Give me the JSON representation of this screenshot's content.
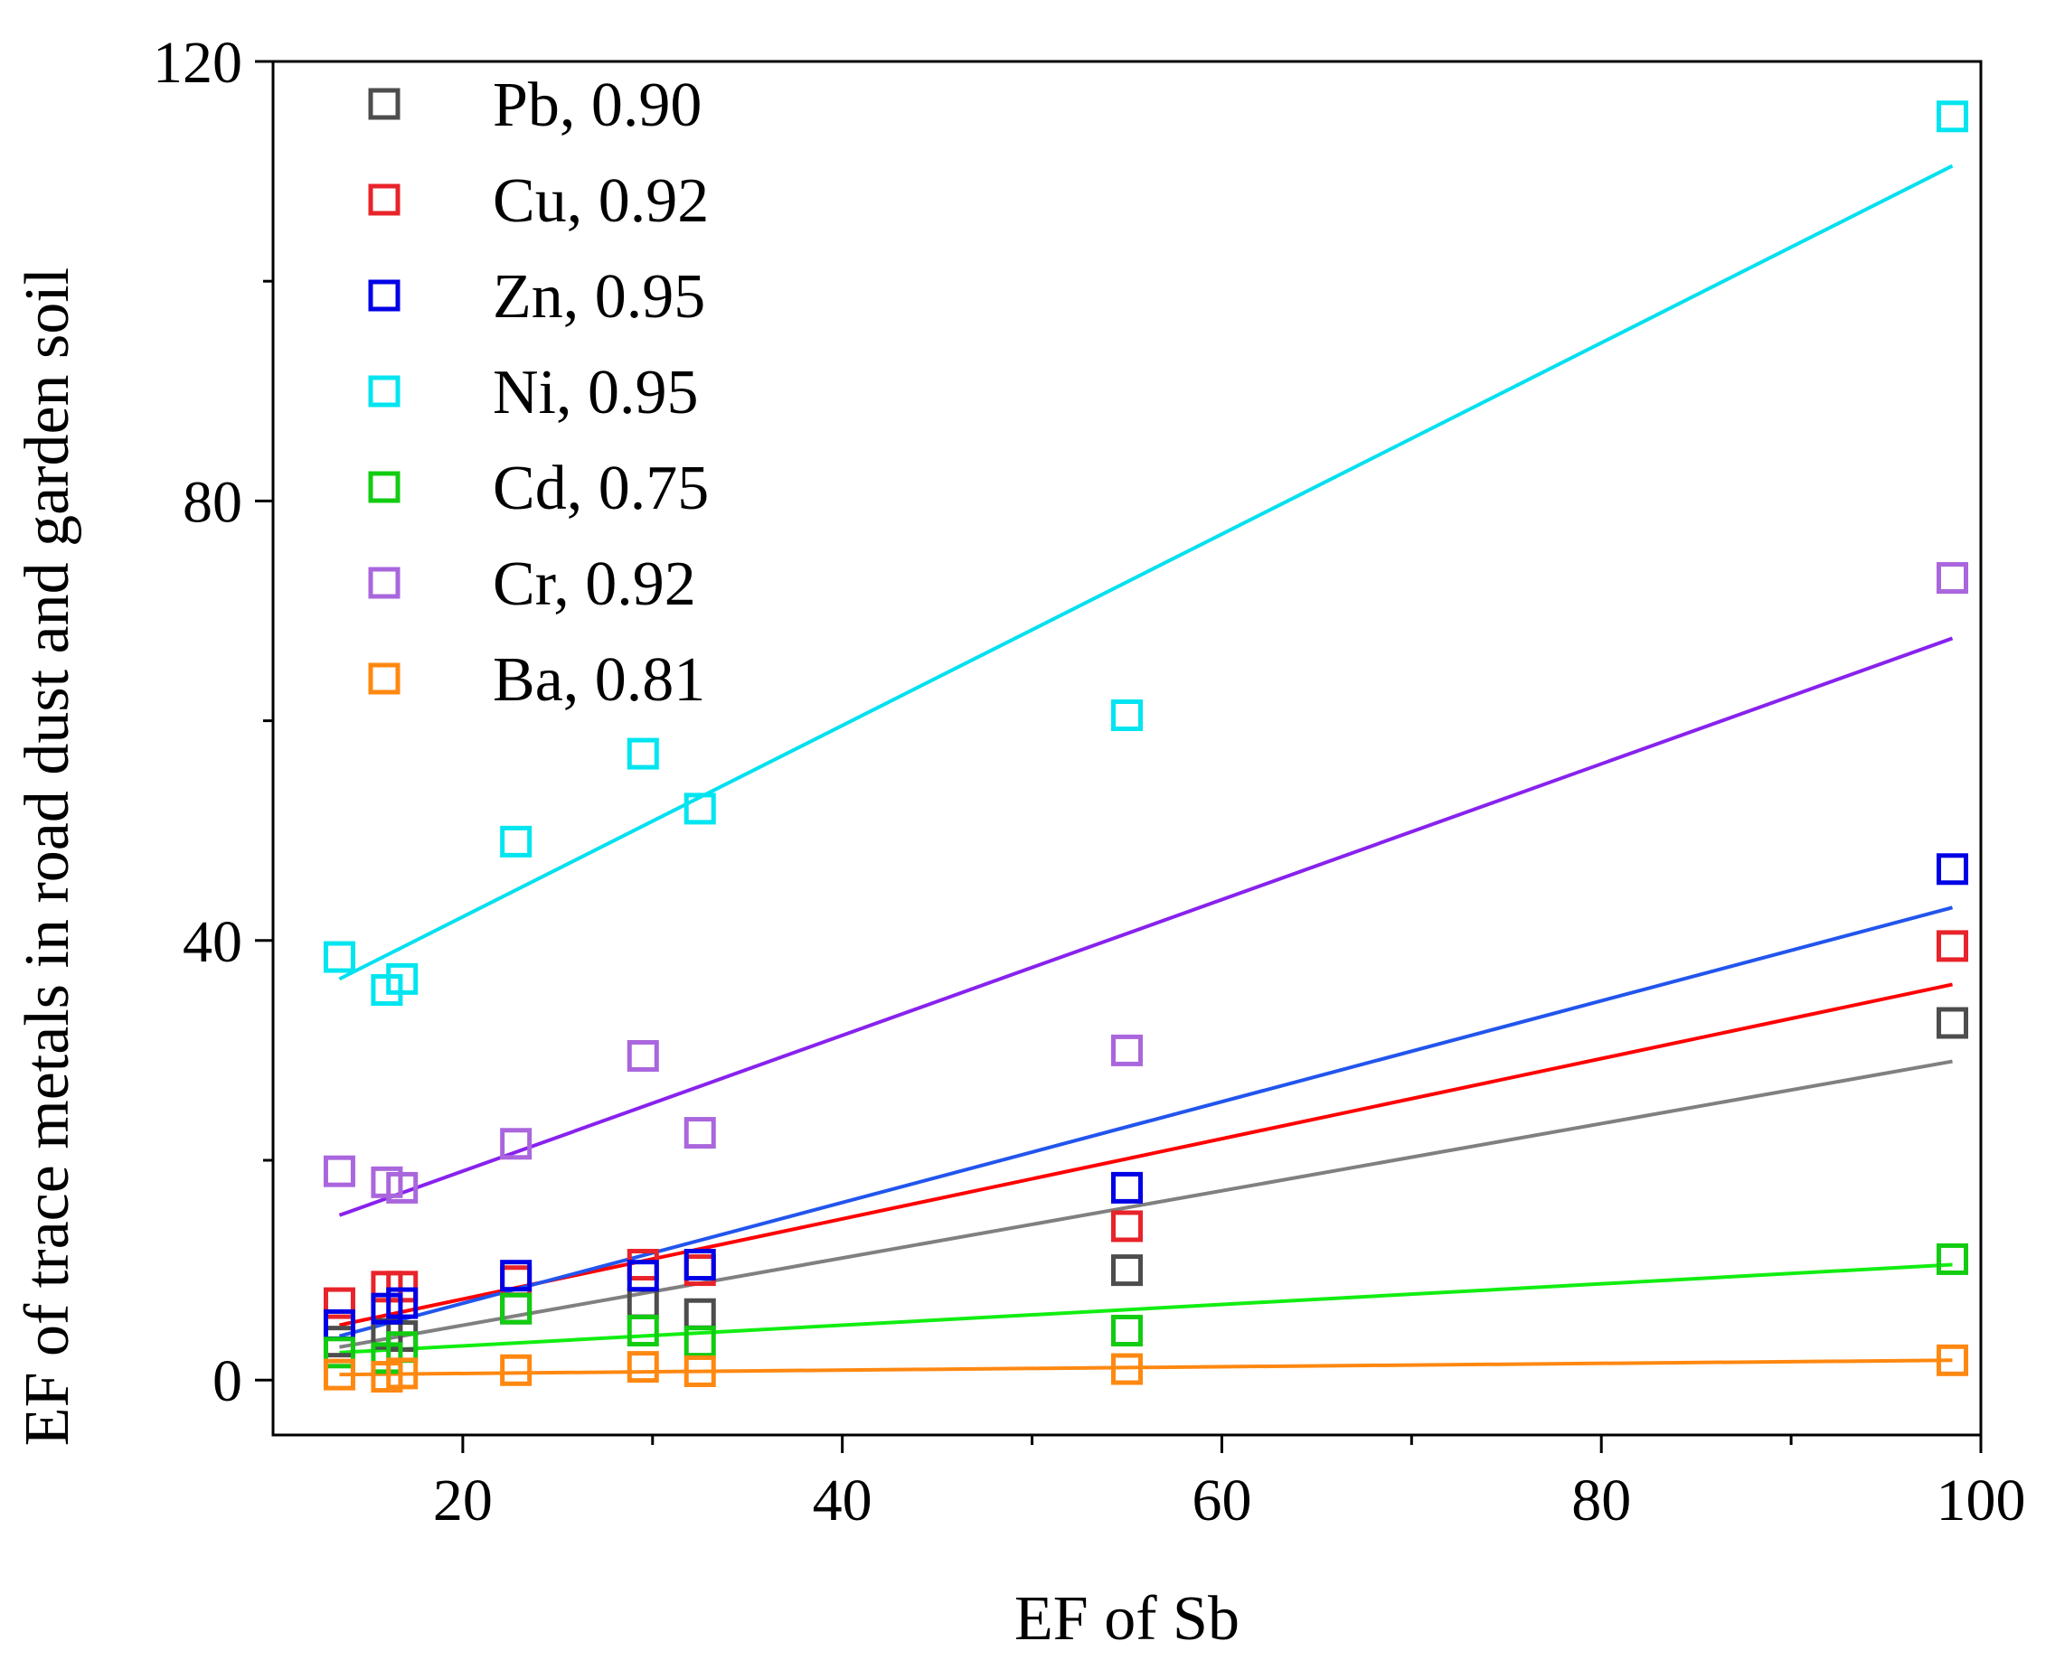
{
  "chart_data": {
    "type": "scatter",
    "xlabel": "EF of Sb",
    "ylabel": "EF of trace metals in road dust and garden soil",
    "xlim": [
      10,
      100
    ],
    "ylim": [
      -5,
      120
    ],
    "x_major_ticks": [
      20,
      40,
      60,
      80,
      100
    ],
    "x_minor_ticks": [
      30,
      50,
      70,
      90
    ],
    "x_tick_labels": [
      "20",
      "40",
      "60",
      "80",
      "100"
    ],
    "y_major_ticks": [
      0,
      40,
      80,
      120
    ],
    "y_minor_ticks": [
      20,
      60,
      100
    ],
    "y_tick_labels": [
      "0",
      "40",
      "80",
      "120"
    ],
    "grid": false,
    "legend_position": "top-left",
    "marker": "open-square",
    "series": [
      {
        "name": "Pb, 0.90",
        "marker_color": "#4d4d4d",
        "line_color": "#808080",
        "points": [
          [
            13.5,
            3.5
          ],
          [
            16,
            4.2
          ],
          [
            16.8,
            4.0
          ],
          [
            22.8,
            6.5
          ],
          [
            29.5,
            7.0
          ],
          [
            32.5,
            6.0
          ],
          [
            55,
            10.0
          ],
          [
            98.5,
            32.5
          ]
        ],
        "fit": [
          [
            13.5,
            3.0
          ],
          [
            98.5,
            29.0
          ]
        ]
      },
      {
        "name": "Cu, 0.92",
        "marker_color": "#e8232a",
        "line_color": "#ff0000",
        "points": [
          [
            13.5,
            7.0
          ],
          [
            16,
            8.5
          ],
          [
            16.8,
            8.5
          ],
          [
            22.8,
            9.0
          ],
          [
            29.5,
            10.5
          ],
          [
            32.5,
            10.0
          ],
          [
            55,
            14.0
          ],
          [
            98.5,
            39.5
          ]
        ],
        "fit": [
          [
            13.5,
            5.0
          ],
          [
            98.5,
            36.0
          ]
        ]
      },
      {
        "name": "Zn, 0.95",
        "marker_color": "#0000e6",
        "line_color": "#2255ee",
        "points": [
          [
            13.5,
            5.0
          ],
          [
            16,
            6.5
          ],
          [
            16.8,
            7.0
          ],
          [
            22.8,
            9.5
          ],
          [
            29.5,
            9.5
          ],
          [
            32.5,
            10.5
          ],
          [
            55,
            17.5
          ],
          [
            98.5,
            46.5
          ]
        ],
        "fit": [
          [
            13.5,
            4.0
          ],
          [
            98.5,
            43.0
          ]
        ]
      },
      {
        "name": "Ni, 0.95",
        "marker_color": "#00e5f0",
        "line_color": "#00e0ee",
        "points": [
          [
            13.5,
            38.5
          ],
          [
            16,
            35.5
          ],
          [
            16.8,
            36.5
          ],
          [
            22.8,
            49.0
          ],
          [
            29.5,
            57.0
          ],
          [
            32.5,
            52.0
          ],
          [
            55,
            60.5
          ],
          [
            98.5,
            115.0
          ]
        ],
        "fit": [
          [
            13.5,
            36.5
          ],
          [
            98.5,
            110.5
          ]
        ]
      },
      {
        "name": "Cd, 0.75",
        "marker_color": "#11cc11",
        "line_color": "#11ee11",
        "points": [
          [
            13.5,
            2.5
          ],
          [
            16,
            2.0
          ],
          [
            16.8,
            3.0
          ],
          [
            22.8,
            6.5
          ],
          [
            29.5,
            4.5
          ],
          [
            32.5,
            3.5
          ],
          [
            55,
            4.5
          ],
          [
            98.5,
            11.0
          ]
        ],
        "fit": [
          [
            13.5,
            2.5
          ],
          [
            98.5,
            10.5
          ]
        ]
      },
      {
        "name": "Cr, 0.92",
        "marker_color": "#aa66dd",
        "line_color": "#8822ee",
        "points": [
          [
            13.5,
            19.0
          ],
          [
            16,
            18.0
          ],
          [
            16.8,
            17.5
          ],
          [
            22.8,
            21.5
          ],
          [
            29.5,
            29.5
          ],
          [
            32.5,
            22.5
          ],
          [
            55,
            30.0
          ],
          [
            98.5,
            73.0
          ]
        ],
        "fit": [
          [
            13.5,
            15.0
          ],
          [
            98.5,
            67.5
          ]
        ]
      },
      {
        "name": "Ba, 0.81",
        "marker_color": "#ff8811",
        "line_color": "#ff8811",
        "points": [
          [
            13.5,
            0.5
          ],
          [
            16,
            0.3
          ],
          [
            16.8,
            0.6
          ],
          [
            22.8,
            0.9
          ],
          [
            29.5,
            1.2
          ],
          [
            32.5,
            0.8
          ],
          [
            55,
            1.0
          ],
          [
            98.5,
            1.8
          ]
        ],
        "fit": [
          [
            13.5,
            0.5
          ],
          [
            98.5,
            1.8
          ]
        ]
      }
    ]
  }
}
